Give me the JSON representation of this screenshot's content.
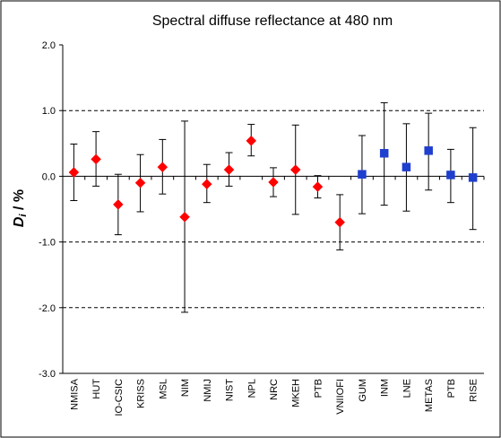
{
  "chart_data": {
    "type": "scatter",
    "title": "Spectral diffuse reflectance at 480 nm",
    "ylabel_main": "D",
    "ylabel_sub": "i",
    "ylabel_rest": " / %",
    "xlabel": "",
    "ylim": [
      -3.0,
      2.0
    ],
    "yticks": [
      "2.0",
      "1.0",
      "0.0",
      "-1.0",
      "-2.0",
      "-3.0"
    ],
    "ytick_values": [
      2.0,
      1.0,
      0.0,
      -1.0,
      -2.0,
      -3.0
    ],
    "dashed_gridlines": [
      1.0,
      -1.0,
      -2.0
    ],
    "grid": "dashed horizontal lines at 1.0, -1.0, -2.0; solid zero line",
    "legend": "none",
    "categories": [
      "NMISA",
      "HUT",
      "IO-CSIC",
      "KRISS",
      "MSL",
      "NIM",
      "NMIJ",
      "NIST",
      "NPL",
      "NRC",
      "MKEH",
      "PTB",
      "VNIIOFI",
      "GUM",
      "INM",
      "LNE",
      "METAS",
      "PTB",
      "RISE"
    ],
    "series": [
      {
        "marker": "diamond",
        "color": "#ff0000",
        "points": [
          {
            "cat": 0,
            "y": 0.06,
            "lo": -0.37,
            "hi": 0.49
          },
          {
            "cat": 1,
            "y": 0.26,
            "lo": -0.15,
            "hi": 0.68
          },
          {
            "cat": 2,
            "y": -0.43,
            "lo": -0.89,
            "hi": 0.03
          },
          {
            "cat": 3,
            "y": -0.1,
            "lo": -0.54,
            "hi": 0.33
          },
          {
            "cat": 4,
            "y": 0.14,
            "lo": -0.27,
            "hi": 0.56
          },
          {
            "cat": 5,
            "y": -0.62,
            "lo": -2.07,
            "hi": 0.84
          },
          {
            "cat": 6,
            "y": -0.12,
            "lo": -0.4,
            "hi": 0.18
          },
          {
            "cat": 7,
            "y": 0.1,
            "lo": -0.15,
            "hi": 0.36
          },
          {
            "cat": 8,
            "y": 0.54,
            "lo": 0.31,
            "hi": 0.79
          },
          {
            "cat": 9,
            "y": -0.09,
            "lo": -0.31,
            "hi": 0.13
          },
          {
            "cat": 10,
            "y": 0.1,
            "lo": -0.58,
            "hi": 0.78
          },
          {
            "cat": 11,
            "y": -0.16,
            "lo": -0.33,
            "hi": 0.01
          },
          {
            "cat": 12,
            "y": -0.7,
            "lo": -1.12,
            "hi": -0.28
          }
        ]
      },
      {
        "marker": "square",
        "color": "#1f3fcf",
        "points": [
          {
            "cat": 13,
            "y": 0.03,
            "lo": -0.57,
            "hi": 0.62
          },
          {
            "cat": 14,
            "y": 0.35,
            "lo": -0.44,
            "hi": 1.12
          },
          {
            "cat": 15,
            "y": 0.14,
            "lo": -0.53,
            "hi": 0.8
          },
          {
            "cat": 16,
            "y": 0.39,
            "lo": -0.21,
            "hi": 0.96
          },
          {
            "cat": 17,
            "y": 0.02,
            "lo": -0.4,
            "hi": 0.41
          },
          {
            "cat": 18,
            "y": -0.02,
            "lo": -0.81,
            "hi": 0.74
          }
        ]
      }
    ]
  }
}
